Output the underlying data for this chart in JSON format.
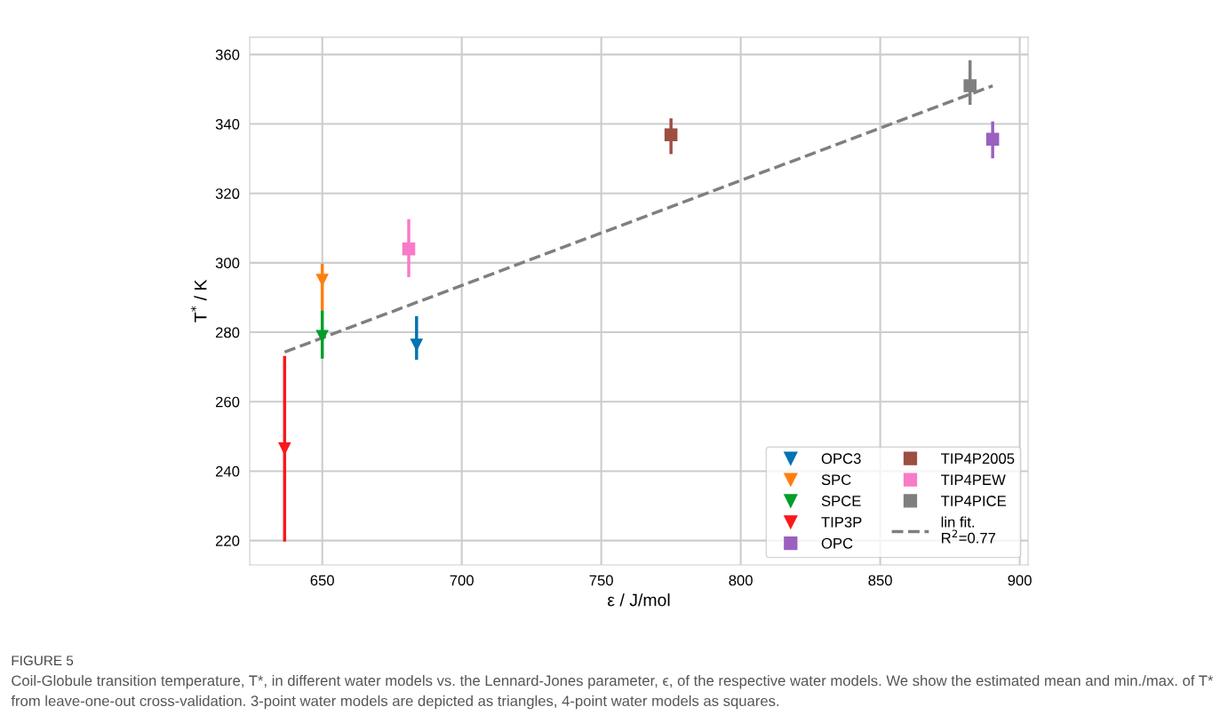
{
  "chart_data": {
    "type": "scatter",
    "xlabel": "ε / J/mol",
    "ylabel": "T$^{*}$ / K",
    "xlim": [
      624,
      903
    ],
    "xticks": [
      650,
      700,
      750,
      800,
      850,
      900
    ],
    "ylim": [
      213,
      365
    ],
    "yticks": [
      220,
      240,
      260,
      280,
      300,
      320,
      340,
      360
    ],
    "grid": true,
    "legend": "bottom right",
    "series": [
      {
        "name": "OPC3",
        "color": "#0173b2",
        "marker": "triangle",
        "x": [
          683.8
        ],
        "values": [
          276.3
        ],
        "errors": [
          [
            272.1,
            284.6
          ]
        ]
      },
      {
        "name": "SPC",
        "color": "#ff7f0e",
        "marker": "triangle",
        "x": [
          650
        ],
        "values": [
          295.0
        ],
        "errors": [
          [
            286.3,
            299.8
          ]
        ]
      },
      {
        "name": "SPCE",
        "color": "#029e2a",
        "marker": "triangle",
        "x": [
          650
        ],
        "values": [
          278.8
        ],
        "errors": [
          [
            272.4,
            286.3
          ]
        ]
      },
      {
        "name": "TIP3P",
        "color": "#f8191c",
        "marker": "triangle",
        "x": [
          636.5
        ],
        "values": [
          246.4
        ],
        "errors": [
          [
            219.7,
            273.2
          ]
        ]
      },
      {
        "name": "OPC",
        "color": "#9b5fc0",
        "marker": "square",
        "x": [
          890.3
        ],
        "values": [
          335.6
        ],
        "errors": [
          [
            330.1,
            340.7
          ]
        ]
      },
      {
        "name": "TIP4P2005",
        "color": "#9c4f42",
        "marker": "square",
        "x": [
          775
        ],
        "values": [
          336.9
        ],
        "errors": [
          [
            331.3,
            341.6
          ]
        ]
      },
      {
        "name": "TIP4PEW",
        "color": "#f77bc7",
        "marker": "square",
        "x": [
          681
        ],
        "values": [
          304.0
        ],
        "errors": [
          [
            295.9,
            312.6
          ]
        ]
      },
      {
        "name": "TIP4PICE",
        "color": "#7f7f7f",
        "marker": "square",
        "x": [
          882.2
        ],
        "values": [
          351.0
        ],
        "errors": [
          [
            345.5,
            358.4
          ]
        ]
      },
      {
        "name": "lin fit.\nR$^{2}$=0.77",
        "type": "line",
        "line_style": "dashed",
        "marker": "none",
        "color": "#7f7f7f",
        "x": [
          636.5,
          890.3
        ],
        "values": [
          274.3,
          351.0
        ]
      }
    ],
    "annotations": [
      "FIGURE 5",
      "Coil-Globule transition temperature, T*, in different water models vs. the Lennard-Jones parameter, ϵ, of the respective water models. We show the estimated mean and min./max. of T* from leave-one-out cross-validation. 3-point water models are depicted as triangles, 4-point water models as squares."
    ]
  }
}
